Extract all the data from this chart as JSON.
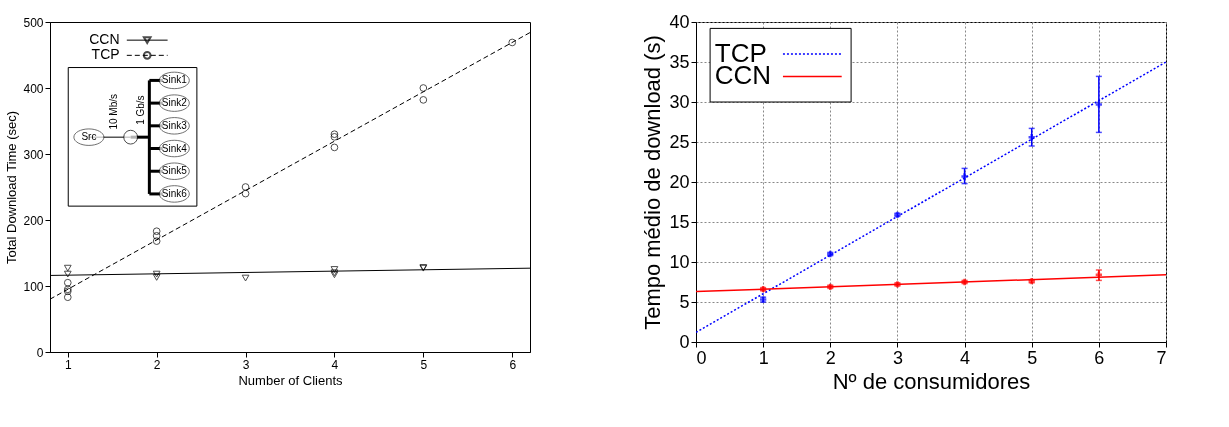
{
  "chart_data": [
    {
      "type": "scatter",
      "xlabel": "Number of Clients",
      "ylabel": "Total Download Time (sec)",
      "xlim": [
        0.8,
        6.2
      ],
      "ylim": [
        0,
        500
      ],
      "xticks": [
        1,
        2,
        3,
        4,
        5,
        6
      ],
      "yticks": [
        0,
        100,
        200,
        300,
        400,
        500
      ],
      "grid": false,
      "legend": "top left",
      "annotations": [
        "Src",
        "10 Mb/s",
        "1 Gb/s",
        "Sink1",
        "Sink2",
        "Sink3",
        "Sink4",
        "Sink5",
        "Sink6"
      ],
      "series": [
        {
          "name": "CCN",
          "marker": "triangle",
          "line_style": "solid",
          "color": "#000000",
          "x": [
            1,
            1,
            2,
            2,
            3,
            4,
            4,
            4,
            5,
            5
          ],
          "values": [
            127,
            118,
            118,
            113,
            112,
            125,
            120,
            117,
            128,
            127
          ]
        },
        {
          "name": "TCP",
          "marker": "circle",
          "line_style": "dashed",
          "color": "#000000",
          "x": [
            1,
            1,
            1,
            1,
            2,
            2,
            2,
            3,
            3,
            4,
            4,
            4,
            5,
            5,
            6
          ],
          "values": [
            105,
            95,
            92,
            83,
            183,
            176,
            168,
            250,
            240,
            330,
            326,
            310,
            400,
            382,
            469
          ]
        },
        {
          "type": "line",
          "line_style": "solid",
          "color": "#000000",
          "x": [
            0.8,
            6.2
          ],
          "values": [
            116,
            127
          ]
        },
        {
          "type": "line",
          "line_style": "dashed",
          "color": "#000000",
          "x": [
            0.8,
            6.2
          ],
          "values": [
            80,
            484
          ]
        }
      ]
    },
    {
      "type": "scatter",
      "xlabel": "Nº de consumidores",
      "ylabel": "Tempo médio de download (s)",
      "xlim": [
        0,
        7
      ],
      "ylim": [
        0,
        40
      ],
      "xticks": [
        0,
        1,
        2,
        3,
        4,
        5,
        6,
        7
      ],
      "yticks": [
        0,
        5,
        10,
        15,
        20,
        25,
        30,
        35,
        40
      ],
      "grid": true,
      "legend": "top left",
      "series": [
        {
          "name": "TCP",
          "type": "line",
          "line_style": "dotted",
          "color": "#0000ff",
          "x": [
            0,
            7
          ],
          "values": [
            1.2,
            35.0
          ]
        },
        {
          "name": "CCN",
          "type": "line",
          "line_style": "solid",
          "color": "#ff0000",
          "x": [
            0,
            7
          ],
          "values": [
            6.3,
            8.4
          ]
        },
        {
          "marker": "cross",
          "color": "#0000ff",
          "x": [
            1,
            2,
            3,
            4,
            5,
            6
          ],
          "values": [
            5.3,
            11.0,
            15.9,
            20.7,
            25.6,
            29.7
          ],
          "errors": [
            0.3,
            0.2,
            0.2,
            [
              19.8,
              21.7
            ],
            [
              24.5,
              26.7
            ],
            [
              26.2,
              33.2
            ]
          ]
        },
        {
          "marker": "cross",
          "color": "#ff0000",
          "x": [
            1,
            2,
            3,
            4,
            5,
            6
          ],
          "values": [
            6.6,
            6.9,
            7.2,
            7.5,
            7.6,
            8.4
          ],
          "errors": [
            0.2,
            0.2,
            0.2,
            0.2,
            0.2,
            [
              7.7,
              9.0
            ]
          ]
        }
      ]
    }
  ]
}
